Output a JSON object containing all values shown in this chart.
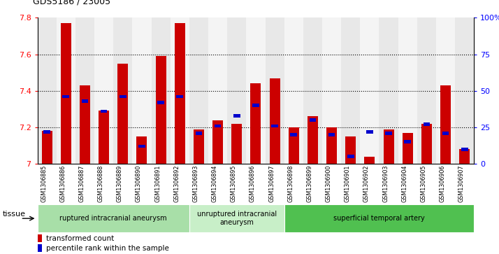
{
  "title": "GDS5186 / 23005",
  "samples": [
    "GSM1306885",
    "GSM1306886",
    "GSM1306887",
    "GSM1306888",
    "GSM1306889",
    "GSM1306890",
    "GSM1306891",
    "GSM1306892",
    "GSM1306893",
    "GSM1306894",
    "GSM1306895",
    "GSM1306896",
    "GSM1306897",
    "GSM1306898",
    "GSM1306899",
    "GSM1306900",
    "GSM1306901",
    "GSM1306902",
    "GSM1306903",
    "GSM1306904",
    "GSM1306905",
    "GSM1306906",
    "GSM1306907"
  ],
  "red_values": [
    7.18,
    7.77,
    7.43,
    7.29,
    7.55,
    7.15,
    7.59,
    7.77,
    7.19,
    7.24,
    7.22,
    7.44,
    7.47,
    7.2,
    7.26,
    7.2,
    7.15,
    7.04,
    7.19,
    7.17,
    7.22,
    7.43,
    7.08
  ],
  "blue_values": [
    22,
    46,
    43,
    36,
    46,
    12,
    42,
    46,
    21,
    26,
    33,
    40,
    26,
    20,
    30,
    20,
    5,
    22,
    21,
    15,
    27,
    21,
    10
  ],
  "ylim_left": [
    7.0,
    7.8
  ],
  "ylim_right": [
    0,
    100
  ],
  "yticks_left": [
    7.0,
    7.2,
    7.4,
    7.6,
    7.8
  ],
  "yticks_right": [
    0,
    25,
    50,
    75,
    100
  ],
  "ytick_labels_right": [
    "0",
    "25",
    "50",
    "75",
    "100%"
  ],
  "groups": [
    {
      "label": "ruptured intracranial aneurysm",
      "start": 0,
      "end": 7,
      "color": "#a8dfa8"
    },
    {
      "label": "unruptured intracranial\naneurysm",
      "start": 8,
      "end": 12,
      "color": "#c8efc8"
    },
    {
      "label": "superficial temporal artery",
      "start": 13,
      "end": 22,
      "color": "#50c050"
    }
  ],
  "red_color": "#cc0000",
  "blue_color": "#0000cc",
  "bar_width": 0.55,
  "tissue_label": "tissue",
  "legend_red": "transformed count",
  "legend_blue": "percentile rank within the sample",
  "bg_odd": "#e8e8e8",
  "bg_even": "#f4f4f4"
}
